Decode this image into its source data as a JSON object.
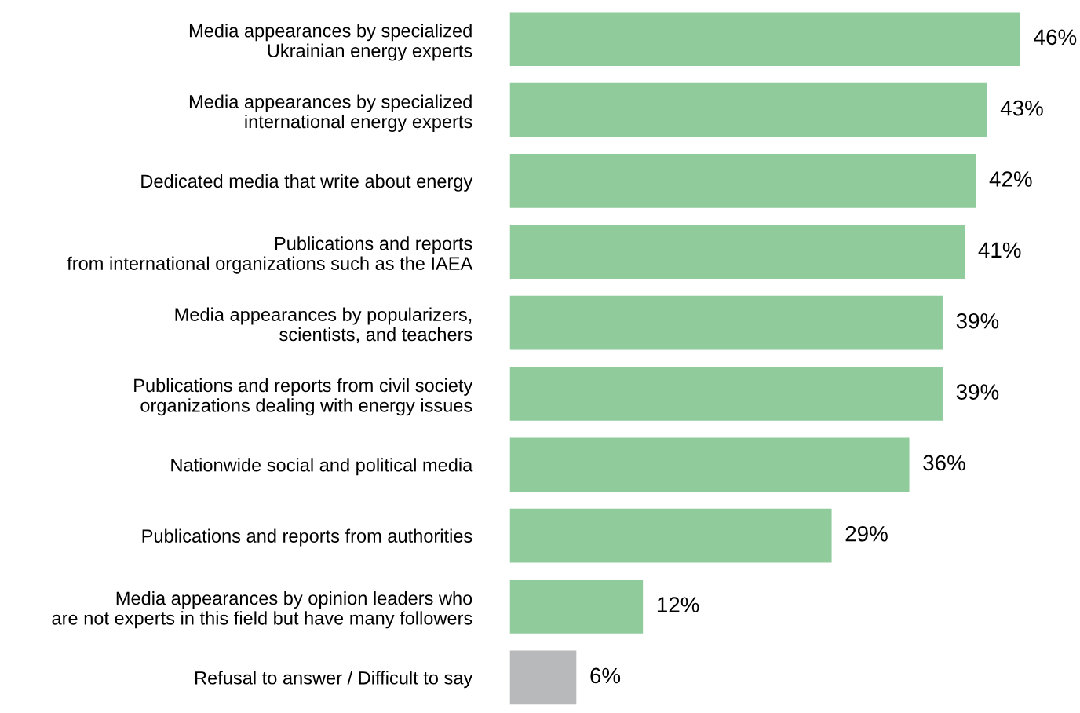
{
  "chart_data": {
    "type": "bar",
    "orientation": "horizontal",
    "categories": [
      "Media appearances by specialized\nUkrainian energy experts",
      "Media appearances by specialized\ninternational energy experts",
      "Dedicated media that write about energy",
      "Publications and reports\nfrom international organizations such as the IAEA",
      "Media appearances by popularizers,\nscientists, and teachers",
      "Publications and reports from civil society\norganizations dealing with energy issues",
      "Nationwide social and political media",
      "Publications and reports from authorities",
      "Media appearances by opinion leaders who\nare not experts in this field but have many followers",
      "Refusal to answer / Difficult to say"
    ],
    "values": [
      46,
      43,
      42,
      41,
      39,
      39,
      36,
      29,
      12,
      6
    ],
    "value_labels": [
      "46%",
      "43%",
      "42%",
      "41%",
      "39%",
      "39%",
      "36%",
      "29%",
      "12%",
      "6%"
    ],
    "colors": [
      "#8fcb9b",
      "#8fcb9b",
      "#8fcb9b",
      "#8fcb9b",
      "#8fcb9b",
      "#8fcb9b",
      "#8fcb9b",
      "#8fcb9b",
      "#8fcb9b",
      "#b8b9bb"
    ],
    "grid": false,
    "legend": false
  }
}
